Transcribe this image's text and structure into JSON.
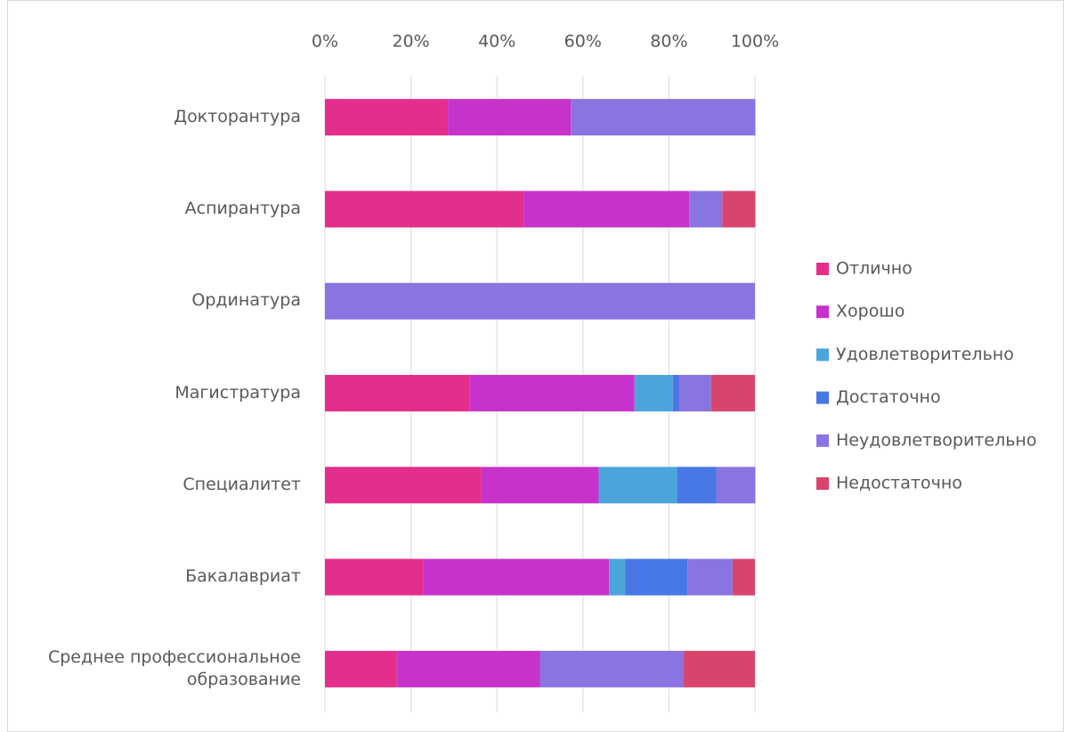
{
  "chart_data": {
    "type": "stacked_bar_horizontal_percent",
    "categories": [
      "Докторантура",
      "Аспирантура",
      "Ординатура",
      "Магистратура",
      "Специалитет",
      "Бакалавриат",
      "Среднее профессиональное образование"
    ],
    "series": [
      {
        "name": "Отлично",
        "color": "#e32e8c",
        "values": [
          28.6,
          46.2,
          0,
          33.7,
          36.4,
          22.8,
          16.7
        ]
      },
      {
        "name": "Хорошо",
        "color": "#c633cb",
        "values": [
          28.6,
          38.5,
          0,
          38.3,
          27.3,
          43.3,
          33.3
        ]
      },
      {
        "name": "Удовлетворительно",
        "color": "#4ba5db",
        "values": [
          0,
          0,
          0,
          8.9,
          18.2,
          3.7,
          0
        ]
      },
      {
        "name": "Достаточно",
        "color": "#4877e6",
        "values": [
          0,
          0,
          0,
          1.4,
          9.1,
          14.5,
          0
        ]
      },
      {
        "name": "Неудовлетворительно",
        "color": "#8a74e2",
        "values": [
          42.9,
          7.7,
          100,
          7.5,
          9.1,
          10.5,
          33.3
        ]
      },
      {
        "name": "Недостаточно",
        "color": "#d8456c",
        "values": [
          0,
          7.7,
          0,
          10.2,
          0,
          5.2,
          16.7
        ]
      }
    ],
    "xlim": [
      0,
      100
    ],
    "xticks": [
      {
        "value": 0,
        "label": "0%"
      },
      {
        "value": 20,
        "label": "20%"
      },
      {
        "value": 40,
        "label": "40%"
      },
      {
        "value": 60,
        "label": "60%"
      },
      {
        "value": 80,
        "label": "80%"
      },
      {
        "value": 100,
        "label": "100%"
      }
    ],
    "grid": true,
    "legend": "right"
  }
}
